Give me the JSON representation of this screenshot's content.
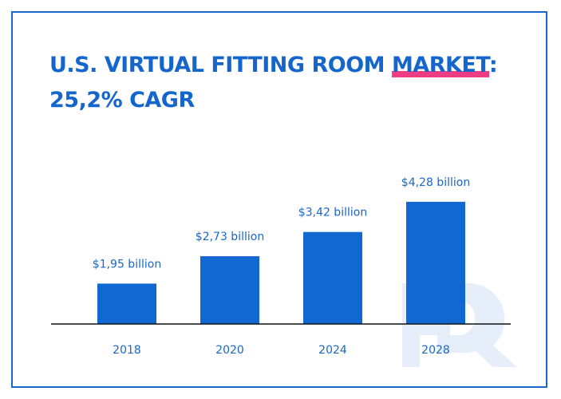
{
  "title": {
    "line1_prefix": "U.S. VIRTUAL FITTING ROOM ",
    "line1_highlight": "MARKET",
    "line1_suffix": ":",
    "line2": "25,2% CAGR"
  },
  "colors": {
    "bar": "#1268d3",
    "title": "#1466cc",
    "highlight": "#f03b85",
    "watermark": "#e6eefa"
  },
  "watermark": "HQ",
  "chart_data": {
    "type": "bar",
    "categories": [
      "2018",
      "2020",
      "2024",
      "2028"
    ],
    "values": [
      1.95,
      2.73,
      3.42,
      4.28
    ],
    "data_labels": [
      "$1,95 billion",
      "$2,73 billion",
      "$3,42 billion",
      "$4,28 billion"
    ],
    "ylim": [
      0.8,
      4.8
    ],
    "grid": false,
    "xlabel": "",
    "ylabel": ""
  }
}
